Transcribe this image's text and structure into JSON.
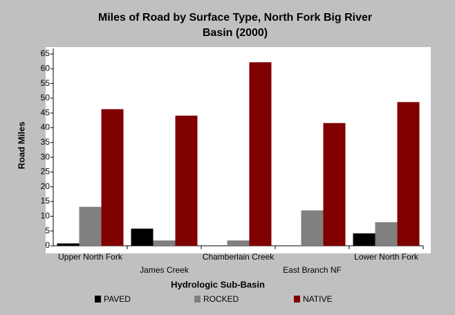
{
  "chart_data": {
    "type": "bar",
    "title": [
      "Miles of Road by Surface Type, North Fork Big River",
      "Basin (2000)"
    ],
    "x_label": "Hydrologic Sub-Basin",
    "y_label": "Road Miles",
    "categories": [
      "Upper North Fork",
      "James Creek",
      "Chamberlain Creek",
      "East Branch NF",
      "Lower North Fork"
    ],
    "series": [
      {
        "name": "PAVED",
        "color": "#000000",
        "values": [
          0.8,
          5.8,
          0,
          0,
          4.2
        ]
      },
      {
        "name": "ROCKED",
        "color": "#808080",
        "values": [
          13.2,
          1.8,
          1.8,
          12.0,
          8.0
        ]
      },
      {
        "name": "NATIVE",
        "color": "#800000",
        "values": [
          46.3,
          44.1,
          62.2,
          41.6,
          48.7
        ]
      }
    ],
    "ylim": [
      0,
      65
    ],
    "yticks": [
      0,
      5,
      10,
      15,
      20,
      25,
      30,
      35,
      40,
      45,
      50,
      55,
      60,
      65
    ],
    "legend": "bottom"
  }
}
